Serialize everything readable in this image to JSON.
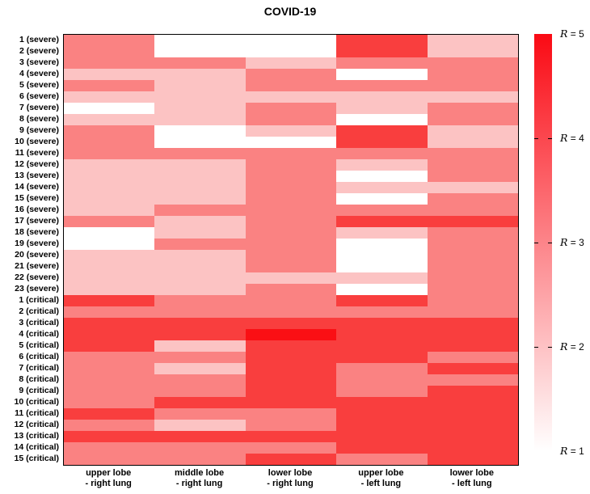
{
  "title": "COVID-19",
  "chart_data": {
    "type": "heatmap",
    "title": "COVID-19",
    "legend_position": "right",
    "value_variable": "R",
    "value_range": [
      1,
      5
    ],
    "level_colors": {
      "1": "#ffffff",
      "2": "#fcc3c3",
      "3": "#fa8282",
      "4": "#f93e3e",
      "5": "#fa0f14"
    },
    "colorbar": {
      "gradient_top": "#fa0a14",
      "gradient_bottom": "#ffffff",
      "tick_labels": [
        {
          "var": "R",
          "eq": " = 5",
          "value": 5
        },
        {
          "var": "R",
          "eq": " = 4",
          "value": 4
        },
        {
          "var": "R",
          "eq": " = 3",
          "value": 3
        },
        {
          "var": "R",
          "eq": " = 2",
          "value": 2
        },
        {
          "var": "R",
          "eq": " = 1",
          "value": 1
        }
      ]
    },
    "col_labels": [
      {
        "line1": "upper lobe",
        "line2": "- right lung"
      },
      {
        "line1": "middle lobe",
        "line2": "- right lung"
      },
      {
        "line1": "lower lobe",
        "line2": "- right lung"
      },
      {
        "line1": "upper lobe",
        "line2": "- left lung"
      },
      {
        "line1": "lower lobe",
        "line2": "- left lung"
      }
    ],
    "row_labels": [
      "1 (severe)",
      "2 (severe)",
      "3 (severe)",
      "4 (severe)",
      "5 (severe)",
      "6 (severe)",
      "7 (severe)",
      "8 (severe)",
      "9 (severe)",
      "10 (severe)",
      "11 (severe)",
      "12 (severe)",
      "13 (severe)",
      "14 (severe)",
      "15 (severe)",
      "16 (severe)",
      "17 (severe)",
      "18 (severe)",
      "19 (severe)",
      "20 (severe)",
      "21 (severe)",
      "22 (severe)",
      "23 (severe)",
      "1 (critical)",
      "2 (critical)",
      "3 (critical)",
      "4 (critical)",
      "5 (critical)",
      "6 (critical)",
      "7 (critical)",
      "8 (critical)",
      "9 (critical)",
      "10 (critical)",
      "11 (critical)",
      "12 (critical)",
      "13 (critical)",
      "14 (critical)",
      "15 (critical)"
    ],
    "values": [
      [
        3,
        1,
        1,
        4,
        2
      ],
      [
        3,
        1,
        1,
        4,
        2
      ],
      [
        3,
        3,
        2,
        3,
        3
      ],
      [
        2,
        2,
        3,
        1,
        3
      ],
      [
        3,
        2,
        3,
        3,
        3
      ],
      [
        2,
        2,
        2,
        2,
        2
      ],
      [
        1,
        2,
        3,
        2,
        3
      ],
      [
        2,
        2,
        3,
        1,
        3
      ],
      [
        3,
        1,
        2,
        4,
        2
      ],
      [
        3,
        1,
        1,
        4,
        2
      ],
      [
        3,
        3,
        3,
        3,
        3
      ],
      [
        2,
        2,
        3,
        2,
        3
      ],
      [
        2,
        2,
        3,
        1,
        3
      ],
      [
        2,
        2,
        3,
        2,
        2
      ],
      [
        2,
        2,
        3,
        1,
        3
      ],
      [
        2,
        3,
        3,
        3,
        3
      ],
      [
        3,
        2,
        3,
        4,
        4
      ],
      [
        1,
        2,
        3,
        2,
        3
      ],
      [
        1,
        3,
        3,
        1,
        3
      ],
      [
        2,
        2,
        3,
        1,
        3
      ],
      [
        2,
        2,
        3,
        1,
        3
      ],
      [
        2,
        2,
        2,
        2,
        3
      ],
      [
        2,
        2,
        3,
        1,
        3
      ],
      [
        4,
        3,
        3,
        4,
        3
      ],
      [
        3,
        3,
        3,
        3,
        3
      ],
      [
        4,
        4,
        4,
        4,
        4
      ],
      [
        4,
        4,
        5,
        4,
        4
      ],
      [
        4,
        2,
        4,
        4,
        4
      ],
      [
        3,
        3,
        4,
        4,
        3
      ],
      [
        3,
        2,
        4,
        3,
        4
      ],
      [
        3,
        3,
        4,
        3,
        3
      ],
      [
        3,
        3,
        4,
        3,
        4
      ],
      [
        3,
        4,
        4,
        4,
        4
      ],
      [
        4,
        3,
        3,
        4,
        4
      ],
      [
        3,
        2,
        3,
        4,
        4
      ],
      [
        4,
        4,
        4,
        4,
        4
      ],
      [
        3,
        3,
        3,
        4,
        4
      ],
      [
        3,
        3,
        4,
        3,
        4
      ]
    ]
  }
}
